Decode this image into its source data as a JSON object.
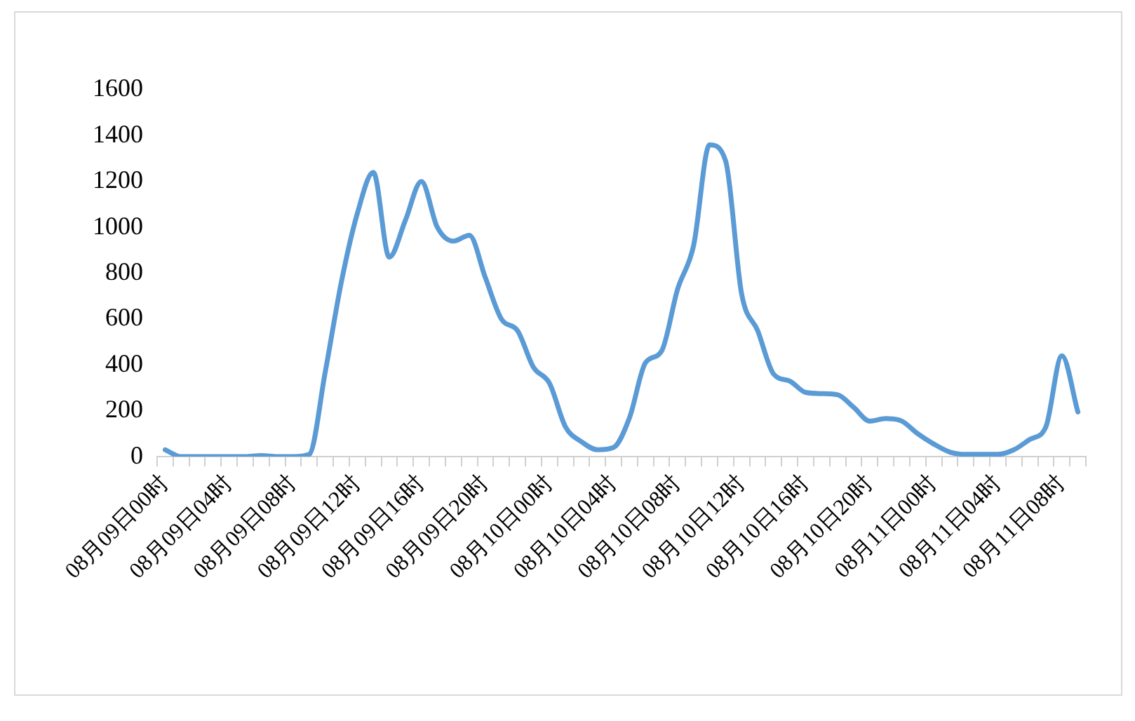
{
  "chart_data": {
    "type": "line",
    "categories": [
      "08月09日00时",
      null,
      null,
      null,
      "08月09日04时",
      null,
      null,
      null,
      "08月09日08时",
      null,
      null,
      null,
      "08月09日12时",
      null,
      null,
      null,
      "08月09日16时",
      null,
      null,
      null,
      "08月09日20时",
      null,
      null,
      null,
      "08月10日00时",
      null,
      null,
      null,
      "08月10日04时",
      null,
      null,
      null,
      "08月10日08时",
      null,
      null,
      null,
      "08月10日12时",
      null,
      null,
      null,
      "08月10日16时",
      null,
      null,
      null,
      "08月10日20时",
      null,
      null,
      null,
      "08月11日00时",
      null,
      null,
      null,
      "08月11日04时",
      null,
      null,
      null,
      "08月11日08时",
      null
    ],
    "series": [
      {
        "color": "#5b9bd5",
        "values": [
          30,
          0,
          0,
          0,
          0,
          0,
          5,
          0,
          0,
          10,
          370,
          760,
          1060,
          1240,
          870,
          1030,
          1200,
          1000,
          940,
          965,
          780,
          600,
          550,
          390,
          320,
          130,
          65,
          30,
          40,
          170,
          410,
          460,
          730,
          920,
          1360,
          1290,
          710,
          550,
          360,
          330,
          280,
          275,
          270,
          215,
          155,
          166,
          155,
          100,
          55,
          20,
          10,
          10,
          10,
          30,
          75,
          130,
          440,
          195
        ]
      }
    ],
    "ylim": [
      0,
      1600
    ],
    "yticks": [
      0,
      200,
      400,
      600,
      800,
      1000,
      1200,
      1400,
      1600
    ],
    "grid": false,
    "legend": false,
    "marker": "none",
    "line_style": "solid"
  }
}
